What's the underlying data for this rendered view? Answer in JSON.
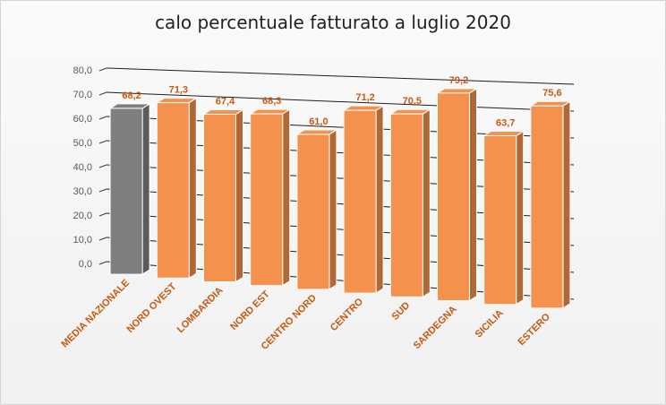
{
  "chart_data": {
    "type": "bar",
    "title": "calo percentuale fatturato a luglio 2020",
    "categories": [
      "MEDIA NAZIONALE",
      "NORD OVEST",
      "LOMBARDIA",
      "NORD EST",
      "CENTRO NORD",
      "CENTRO",
      "SUD",
      "SARDEGNA",
      "SICILIA",
      "ESTERO"
    ],
    "values": [
      68.2,
      71.3,
      67.4,
      68.3,
      61.0,
      71.2,
      70.5,
      79.2,
      63.7,
      75.6
    ],
    "value_labels": [
      "68,2",
      "71,3",
      "67,4",
      "68,3",
      "61,0",
      "71,2",
      "70,5",
      "79,2",
      "63,7",
      "75,6"
    ],
    "y_ticks": [
      "0,0",
      "10,0",
      "20,0",
      "30,0",
      "40,0",
      "50,0",
      "60,0",
      "70,0",
      "80,0"
    ],
    "ylim": [
      0,
      80
    ],
    "grid": true,
    "perspective": "3d",
    "colors": {
      "highlight": "#7f7f7f",
      "bars": "#f4914d",
      "label": "#c55a11",
      "axis_text": "#595959"
    }
  }
}
